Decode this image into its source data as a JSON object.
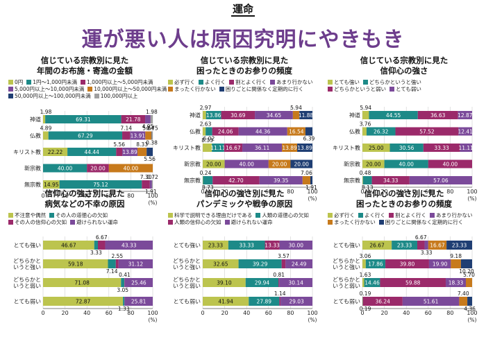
{
  "header": {
    "kicker": "運命",
    "headline": "運が悪い人は原因究明にやきもき"
  },
  "unit": "(%)",
  "chart_data": [
    {
      "id": "p1",
      "type": "stacked-bar",
      "title": [
        "信じている宗教別に見た",
        "年間のお布施・寄進の金額"
      ],
      "legend": [
        "0円",
        "1円～1,000円未満",
        "1,000円以上～5,000円未満",
        "5,000円以上～10,000円未満",
        "10,000円以上～50,000円未満",
        "50,000円以上～100,000円未満",
        "100,000円以上"
      ],
      "colors": [
        "#bcc44e",
        "#1d8a88",
        "#9b2a6a",
        "#7b4a9a",
        "#c77a1c",
        "#1f3e73",
        "#a0a0a0"
      ],
      "categories": [
        "神道",
        "仏教",
        "キリスト教",
        "新宗教",
        "無宗教"
      ],
      "series_values": [
        [
          1.98,
          69.31,
          21.78,
          4.95,
          0,
          0,
          1.98
        ],
        [
          4.89,
          67.29,
          7.14,
          13.91,
          5.64,
          0.38,
          0.75
        ],
        [
          22.22,
          44.44,
          5.56,
          13.89,
          8.33,
          5.56,
          0
        ],
        [
          0,
          40.0,
          20.0,
          0,
          40.0,
          0,
          0
        ],
        [
          14.95,
          75.12,
          7.3,
          1.91,
          0,
          0,
          0.72
        ]
      ],
      "labels": [
        [
          "1.98",
          "69.31",
          "21.78",
          "4.95",
          "",
          "",
          "1.98"
        ],
        [
          "4.89",
          "67.29",
          "7.14",
          "13.91",
          "5.64",
          "0.38",
          "0.75"
        ],
        [
          "22.22",
          "44.44",
          "5.56",
          "13.89",
          "8.33",
          "5.56",
          ""
        ],
        [
          "",
          "40.00",
          "20.00",
          "",
          "40.00",
          "",
          ""
        ],
        [
          "14.95",
          "75.12",
          "7.30",
          "1.91",
          "",
          "",
          "0.72"
        ]
      ],
      "x_ticks": [
        "0",
        "20",
        "40",
        "60",
        "80",
        "100"
      ],
      "x_range": [
        0,
        100
      ]
    },
    {
      "id": "p2",
      "type": "stacked-bar",
      "title": [
        "信じている宗教別に見た",
        "困ったときのお参りの頻度"
      ],
      "legend": [
        "必ず行く",
        "よく行く",
        "割とよく行く",
        "あまり行かない",
        "まったく行かない",
        "困りごとに関係なく定期的に行く"
      ],
      "colors": [
        "#bcc44e",
        "#1d8a88",
        "#9b2a6a",
        "#7b4a9a",
        "#c77a1c",
        "#1f3e73"
      ],
      "categories": [
        "神道",
        "仏教",
        "キリスト教",
        "新宗教",
        "無宗教"
      ],
      "series_values": [
        [
          2.97,
          13.86,
          30.69,
          34.65,
          5.94,
          11.88
        ],
        [
          2.63,
          6.02,
          24.06,
          44.36,
          16.54,
          6.39
        ],
        [
          8.33,
          11.11,
          16.67,
          36.11,
          13.89,
          13.89
        ],
        [
          20.0,
          0,
          0,
          40.0,
          20.0,
          20.0
        ],
        [
          0.24,
          8.73,
          42.7,
          39.35,
          7.06,
          1.91
        ]
      ],
      "labels": [
        [
          "2.97",
          "13.86",
          "30.69",
          "34.65",
          "5.94",
          "11.88"
        ],
        [
          "2.63",
          "6.02",
          "24.06",
          "44.36",
          "16.54",
          "6.39"
        ],
        [
          "8.33",
          "11.11",
          "16.67",
          "36.11",
          "13.89",
          "13.89"
        ],
        [
          "20.00",
          "",
          "",
          "40.00",
          "20.00",
          "20.00"
        ],
        [
          "0.24",
          "8.73",
          "42.70",
          "39.35",
          "7.06",
          "1.91"
        ]
      ],
      "x_ticks": [
        "0",
        "20",
        "40",
        "60",
        "80",
        "100"
      ],
      "x_range": [
        0,
        100
      ]
    },
    {
      "id": "p3",
      "type": "stacked-bar",
      "title": [
        "信じている宗教別に見た",
        "信仰心の強さ"
      ],
      "legend": [
        "とても強い",
        "どちらかというと強い",
        "どちらかというと弱い",
        "とても弱い"
      ],
      "colors": [
        "#bcc44e",
        "#1d8a88",
        "#9b2a6a",
        "#7b4a9a"
      ],
      "categories": [
        "神道",
        "仏教",
        "キリスト教",
        "新宗教",
        "無宗教"
      ],
      "series_values": [
        [
          5.94,
          44.55,
          36.63,
          12.87
        ],
        [
          3.76,
          26.32,
          57.52,
          12.41
        ],
        [
          25.0,
          30.56,
          33.33,
          11.11
        ],
        [
          20.0,
          40.0,
          40.0,
          0
        ],
        [
          0.48,
          8.13,
          34.33,
          57.06
        ]
      ],
      "labels": [
        [
          "5.94",
          "44.55",
          "36.63",
          "12.87"
        ],
        [
          "3.76",
          "26.32",
          "57.52",
          "12.41"
        ],
        [
          "25.00",
          "30.56",
          "33.33",
          "11.11"
        ],
        [
          "20.00",
          "40.00",
          "40.00",
          ""
        ],
        [
          "0.48",
          "8.13",
          "34.33",
          "57.06"
        ]
      ],
      "x_ticks": [
        "0",
        "20",
        "40",
        "60",
        "80",
        "100"
      ],
      "x_range": [
        0,
        100
      ]
    },
    {
      "id": "p4",
      "type": "stacked-bar",
      "title": [
        "信仰心の強さ別に見た",
        "病気などの不幸の原因"
      ],
      "legend": [
        "不注意や偶然",
        "その人の道徳心の欠如",
        "その人の信仰心の欠如",
        "避けられない運命"
      ],
      "colors": [
        "#bcc44e",
        "#1d8a88",
        "#9b2a6a",
        "#7b4a9a"
      ],
      "categories": [
        "とても強い",
        "どちらかと\nいうと強い",
        "どちらかと\nいうと弱い",
        "とても弱い"
      ],
      "series_values": [
        [
          46.67,
          3.33,
          6.67,
          43.33
        ],
        [
          59.18,
          7.14,
          2.55,
          31.12
        ],
        [
          71.08,
          3.05,
          0.41,
          25.46
        ],
        [
          72.87,
          1.33,
          0,
          25.81
        ]
      ],
      "labels": [
        [
          "46.67",
          "3.33",
          "6.67",
          "43.33"
        ],
        [
          "59.18",
          "7.14",
          "2.55",
          "31.12"
        ],
        [
          "71.08",
          "3.05",
          "0.41",
          "25.46"
        ],
        [
          "72.87",
          "1.33",
          "",
          "25.81"
        ]
      ],
      "x_ticks": [
        "0",
        "20",
        "40",
        "60",
        "80",
        "100"
      ],
      "x_range": [
        0,
        100
      ]
    },
    {
      "id": "p5",
      "type": "stacked-bar",
      "title": [
        "信仰心の強さ別に見た",
        "パンデミックや戦争の原因"
      ],
      "legend": [
        "科学で説明できる理由だけである",
        "人類の道徳心の欠如",
        "人類の信仰心の欠如",
        "避けられない運命"
      ],
      "colors": [
        "#bcc44e",
        "#1d8a88",
        "#9b2a6a",
        "#7b4a9a"
      ],
      "categories": [
        "とても強い",
        "どちらかと\nいうと強い",
        "どちらかと\nいうと弱い",
        "とても弱い"
      ],
      "series_values": [
        [
          23.33,
          33.33,
          13.33,
          30.0
        ],
        [
          32.65,
          39.29,
          3.57,
          24.49
        ],
        [
          39.1,
          29.94,
          0.81,
          30.14
        ],
        [
          41.94,
          27.89,
          1.14,
          29.03
        ]
      ],
      "labels": [
        [
          "23.33",
          "33.33",
          "13.33",
          "30.00"
        ],
        [
          "32.65",
          "39.29",
          "3.57",
          "24.49"
        ],
        [
          "39.10",
          "29.94",
          "0.81",
          "30.14"
        ],
        [
          "41.94",
          "27.89",
          "1.14",
          "29.03"
        ]
      ],
      "x_ticks": [
        "0",
        "20",
        "40",
        "60",
        "80",
        "100"
      ],
      "x_range": [
        0,
        100
      ]
    },
    {
      "id": "p6",
      "type": "stacked-bar",
      "title": [
        "信仰心の強さ別に見た",
        "困ったときのお参りの頻度"
      ],
      "legend": [
        "必ず行く",
        "よく行く",
        "割とよく行く",
        "あまり行かない",
        "まったく行かない",
        "困りごとに関係なく定期的に行く"
      ],
      "colors": [
        "#bcc44e",
        "#1d8a88",
        "#9b2a6a",
        "#7b4a9a",
        "#c77a1c",
        "#1f3e73"
      ],
      "categories": [
        "とても強い",
        "どちらかと\nいうと強い",
        "どちらかと\nいうと弱い",
        "とても弱い"
      ],
      "series_values": [
        [
          26.67,
          23.33,
          6.67,
          3.33,
          16.67,
          23.33
        ],
        [
          3.06,
          17.86,
          39.8,
          19.9,
          9.18,
          10.2
        ],
        [
          1.63,
          14.46,
          59.88,
          18.33,
          5.7,
          0
        ],
        [
          0.19,
          0.19,
          36.24,
          51.61,
          7.4,
          4.36
        ]
      ],
      "labels": [
        [
          "26.67",
          "23.33",
          "6.67",
          "3.33",
          "16.67",
          "23.33"
        ],
        [
          "3.06",
          "17.86",
          "39.80",
          "19.90",
          "9.18",
          "10.20"
        ],
        [
          "1.63",
          "14.46",
          "59.88",
          "18.33",
          "5.70",
          ""
        ],
        [
          "0.19",
          "0.19",
          "36.24",
          "51.61",
          "7.40",
          "4.36"
        ]
      ],
      "x_ticks": [
        "0",
        "20",
        "40",
        "60",
        "80",
        "100"
      ],
      "x_range": [
        0,
        100
      ]
    }
  ]
}
